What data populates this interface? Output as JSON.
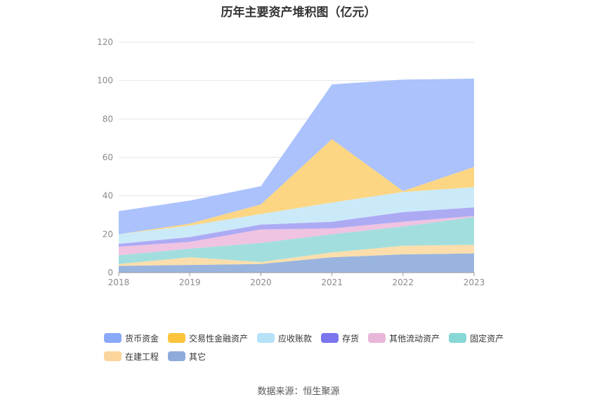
{
  "chart_data": {
    "type": "area",
    "stacked": true,
    "title": "历年主要资产堆积图（亿元）",
    "categories": [
      "2018",
      "2019",
      "2020",
      "2021",
      "2022",
      "2023"
    ],
    "ylim": [
      0,
      120
    ],
    "yticks": [
      0,
      20,
      40,
      60,
      80,
      100,
      120
    ],
    "grid": true,
    "legend_position": "bottom",
    "series": [
      {
        "name": "其它",
        "color": "#94b1dd",
        "values": [
          3.5,
          4,
          4.5,
          8,
          9.5,
          10
        ]
      },
      {
        "name": "在建工程",
        "color": "#fbdca6",
        "values": [
          1,
          4,
          1,
          2.5,
          4.5,
          4.5
        ]
      },
      {
        "name": "固定资产",
        "color": "#9edcdc",
        "values": [
          4.5,
          4.5,
          10,
          9.5,
          10,
          14.5
        ]
      },
      {
        "name": "其他流动资产",
        "color": "#eec0df",
        "values": [
          4.5,
          3.5,
          7,
          3,
          2.5,
          0.5
        ]
      },
      {
        "name": "存货",
        "color": "#a9a5f3",
        "values": [
          1.5,
          2.5,
          2.5,
          3.5,
          5,
          4.5
        ]
      },
      {
        "name": "应收账款",
        "color": "#c8e9f9",
        "values": [
          5,
          6,
          5.5,
          10,
          10.5,
          10.5
        ]
      },
      {
        "name": "交易性金融资产",
        "color": "#fdd47c",
        "values": [
          0,
          1,
          5,
          33,
          0.5,
          10.5
        ]
      },
      {
        "name": "货币资金",
        "color": "#a6bffc",
        "values": [
          12,
          12,
          9.5,
          28.5,
          58,
          46
        ]
      }
    ]
  },
  "legend": {
    "row1": [
      {
        "name": "货币资金",
        "color": "#8aa8f8"
      },
      {
        "name": "交易性金融资产",
        "color": "#fcc53c"
      },
      {
        "name": "应收账款",
        "color": "#b6e2f8"
      },
      {
        "name": "存货",
        "color": "#7b76ee"
      },
      {
        "name": "其他流动资产",
        "color": "#e9b7da"
      },
      {
        "name": "固定资产",
        "color": "#88d7d7"
      }
    ],
    "row2": [
      {
        "name": "在建工程",
        "color": "#fcd59c"
      },
      {
        "name": "其它",
        "color": "#8fabdc"
      }
    ]
  },
  "source_note": "数据来源：恒生聚源"
}
